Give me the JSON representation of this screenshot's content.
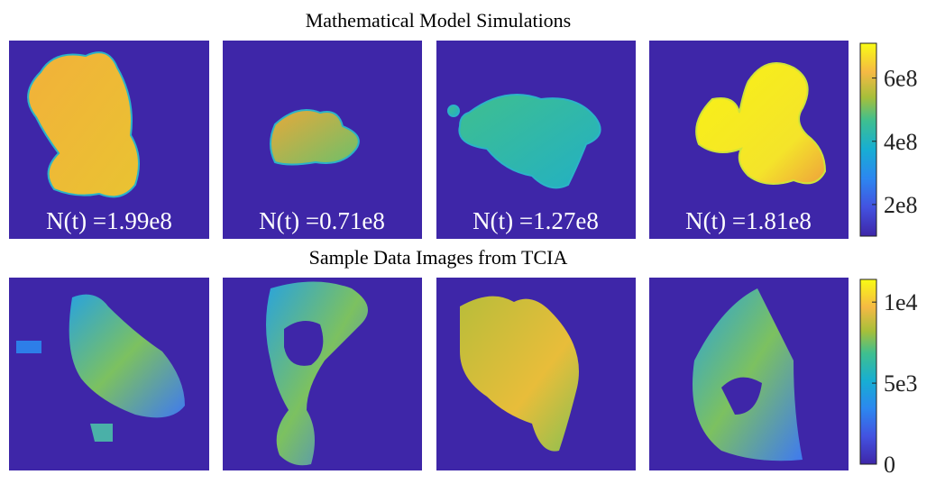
{
  "top": {
    "title": "Mathematical Model Simulations",
    "panels": [
      "N(t) =1.99e8",
      "N(t) =0.71e8",
      "N(t) =1.27e8",
      "N(t) =1.81e8"
    ],
    "colorbar": {
      "ylim": [
        100000000,
        710000000
      ],
      "yticks": [
        {
          "value": 200000000,
          "label": "2e8"
        },
        {
          "value": 400000000,
          "label": "4e8"
        },
        {
          "value": 600000000,
          "label": "6e8"
        }
      ]
    }
  },
  "bottom": {
    "title": "Sample Data Images from TCIA",
    "colorbar": {
      "ylim": [
        0,
        11400
      ],
      "yticks": [
        0,
        {
          "value": 5000,
          "label": "5e3"
        },
        {
          "value": 10000,
          "label": "1e4"
        }
      ]
    }
  }
}
